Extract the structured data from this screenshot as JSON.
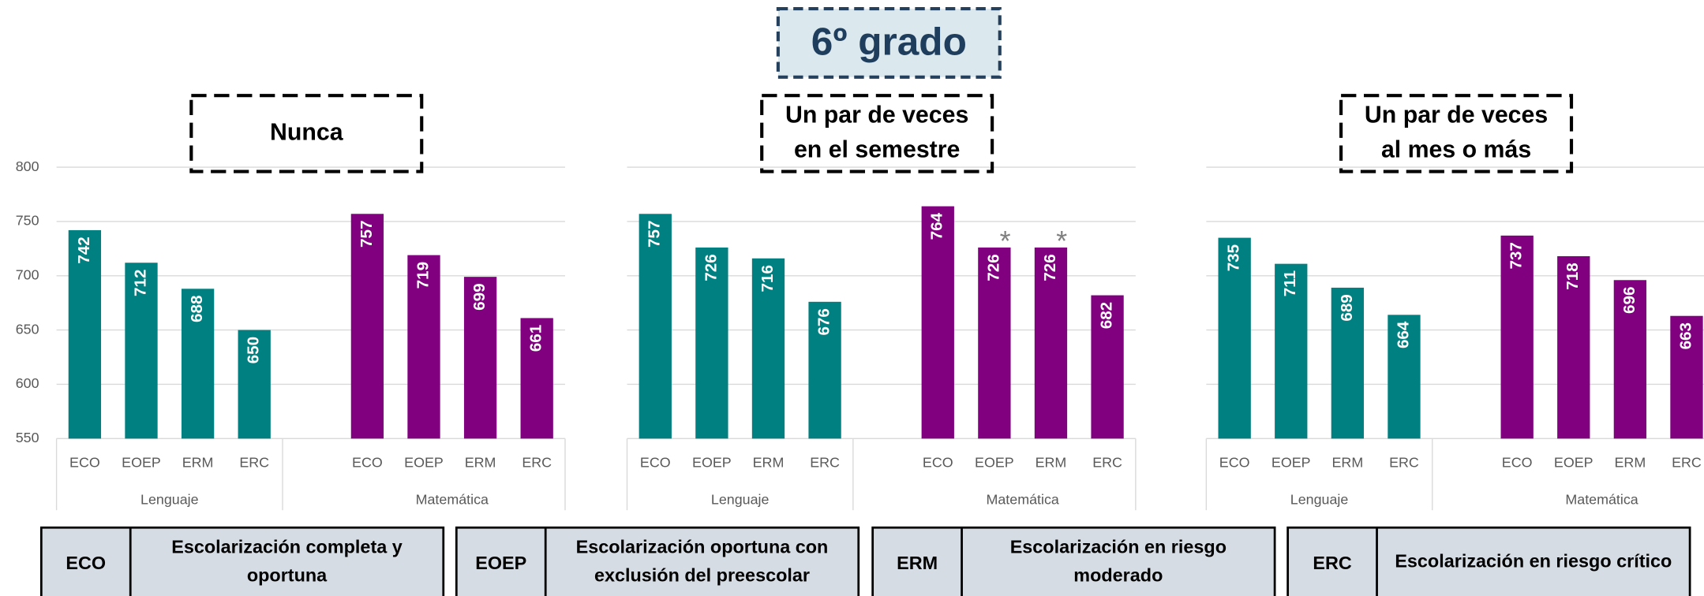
{
  "header": "6º grado",
  "chart_data": [
    {
      "type": "bar",
      "title_lines": [
        "Nunca"
      ],
      "categories": [
        "ECO",
        "EOEP",
        "ERM",
        "ERC"
      ],
      "series": [
        {
          "name": "Lenguaje",
          "color": "#008080",
          "values": [
            742,
            712,
            688,
            650
          ]
        },
        {
          "name": "Matemática",
          "color": "#800080",
          "values": [
            757,
            719,
            699,
            661
          ]
        }
      ],
      "ylim": [
        550,
        800
      ],
      "yticks": [
        550,
        600,
        650,
        700,
        750,
        800
      ],
      "ytick_labels": true,
      "grid": true,
      "annotations": []
    },
    {
      "type": "bar",
      "title_lines": [
        "Un par de veces",
        "en el semestre"
      ],
      "categories": [
        "ECO",
        "EOEP",
        "ERM",
        "ERC"
      ],
      "series": [
        {
          "name": "Lenguaje",
          "color": "#008080",
          "values": [
            757,
            726,
            716,
            676
          ]
        },
        {
          "name": "Matemática",
          "color": "#800080",
          "values": [
            764,
            726,
            726,
            682
          ]
        }
      ],
      "ylim": [
        550,
        800
      ],
      "yticks": [
        550,
        600,
        650,
        700,
        750,
        800
      ],
      "ytick_labels": false,
      "grid": true,
      "annotations": [
        {
          "text": "*",
          "series": 1,
          "index": 1
        },
        {
          "text": "*",
          "series": 1,
          "index": 2
        }
      ]
    },
    {
      "type": "bar",
      "title_lines": [
        "Un par de veces",
        "al mes o más"
      ],
      "categories": [
        "ECO",
        "EOEP",
        "ERM",
        "ERC"
      ],
      "series": [
        {
          "name": "Lenguaje",
          "color": "#008080",
          "values": [
            735,
            711,
            689,
            664
          ]
        },
        {
          "name": "Matemática",
          "color": "#800080",
          "values": [
            737,
            718,
            696,
            663
          ]
        }
      ],
      "ylim": [
        550,
        800
      ],
      "yticks": [
        550,
        600,
        650,
        700,
        750,
        800
      ],
      "ytick_labels": false,
      "grid": true,
      "annotations": []
    }
  ],
  "legend": [
    {
      "abbr": "ECO",
      "lines": [
        "Escolarización completa y",
        "oportuna"
      ]
    },
    {
      "abbr": "EOEP",
      "lines": [
        "Escolarización oportuna con",
        "exclusión del preescolar"
      ]
    },
    {
      "abbr": "ERM",
      "lines": [
        "Escolarización en riesgo",
        "moderado"
      ]
    },
    {
      "abbr": "ERC",
      "lines": [
        "Escolarización en riesgo crítico"
      ]
    }
  ]
}
